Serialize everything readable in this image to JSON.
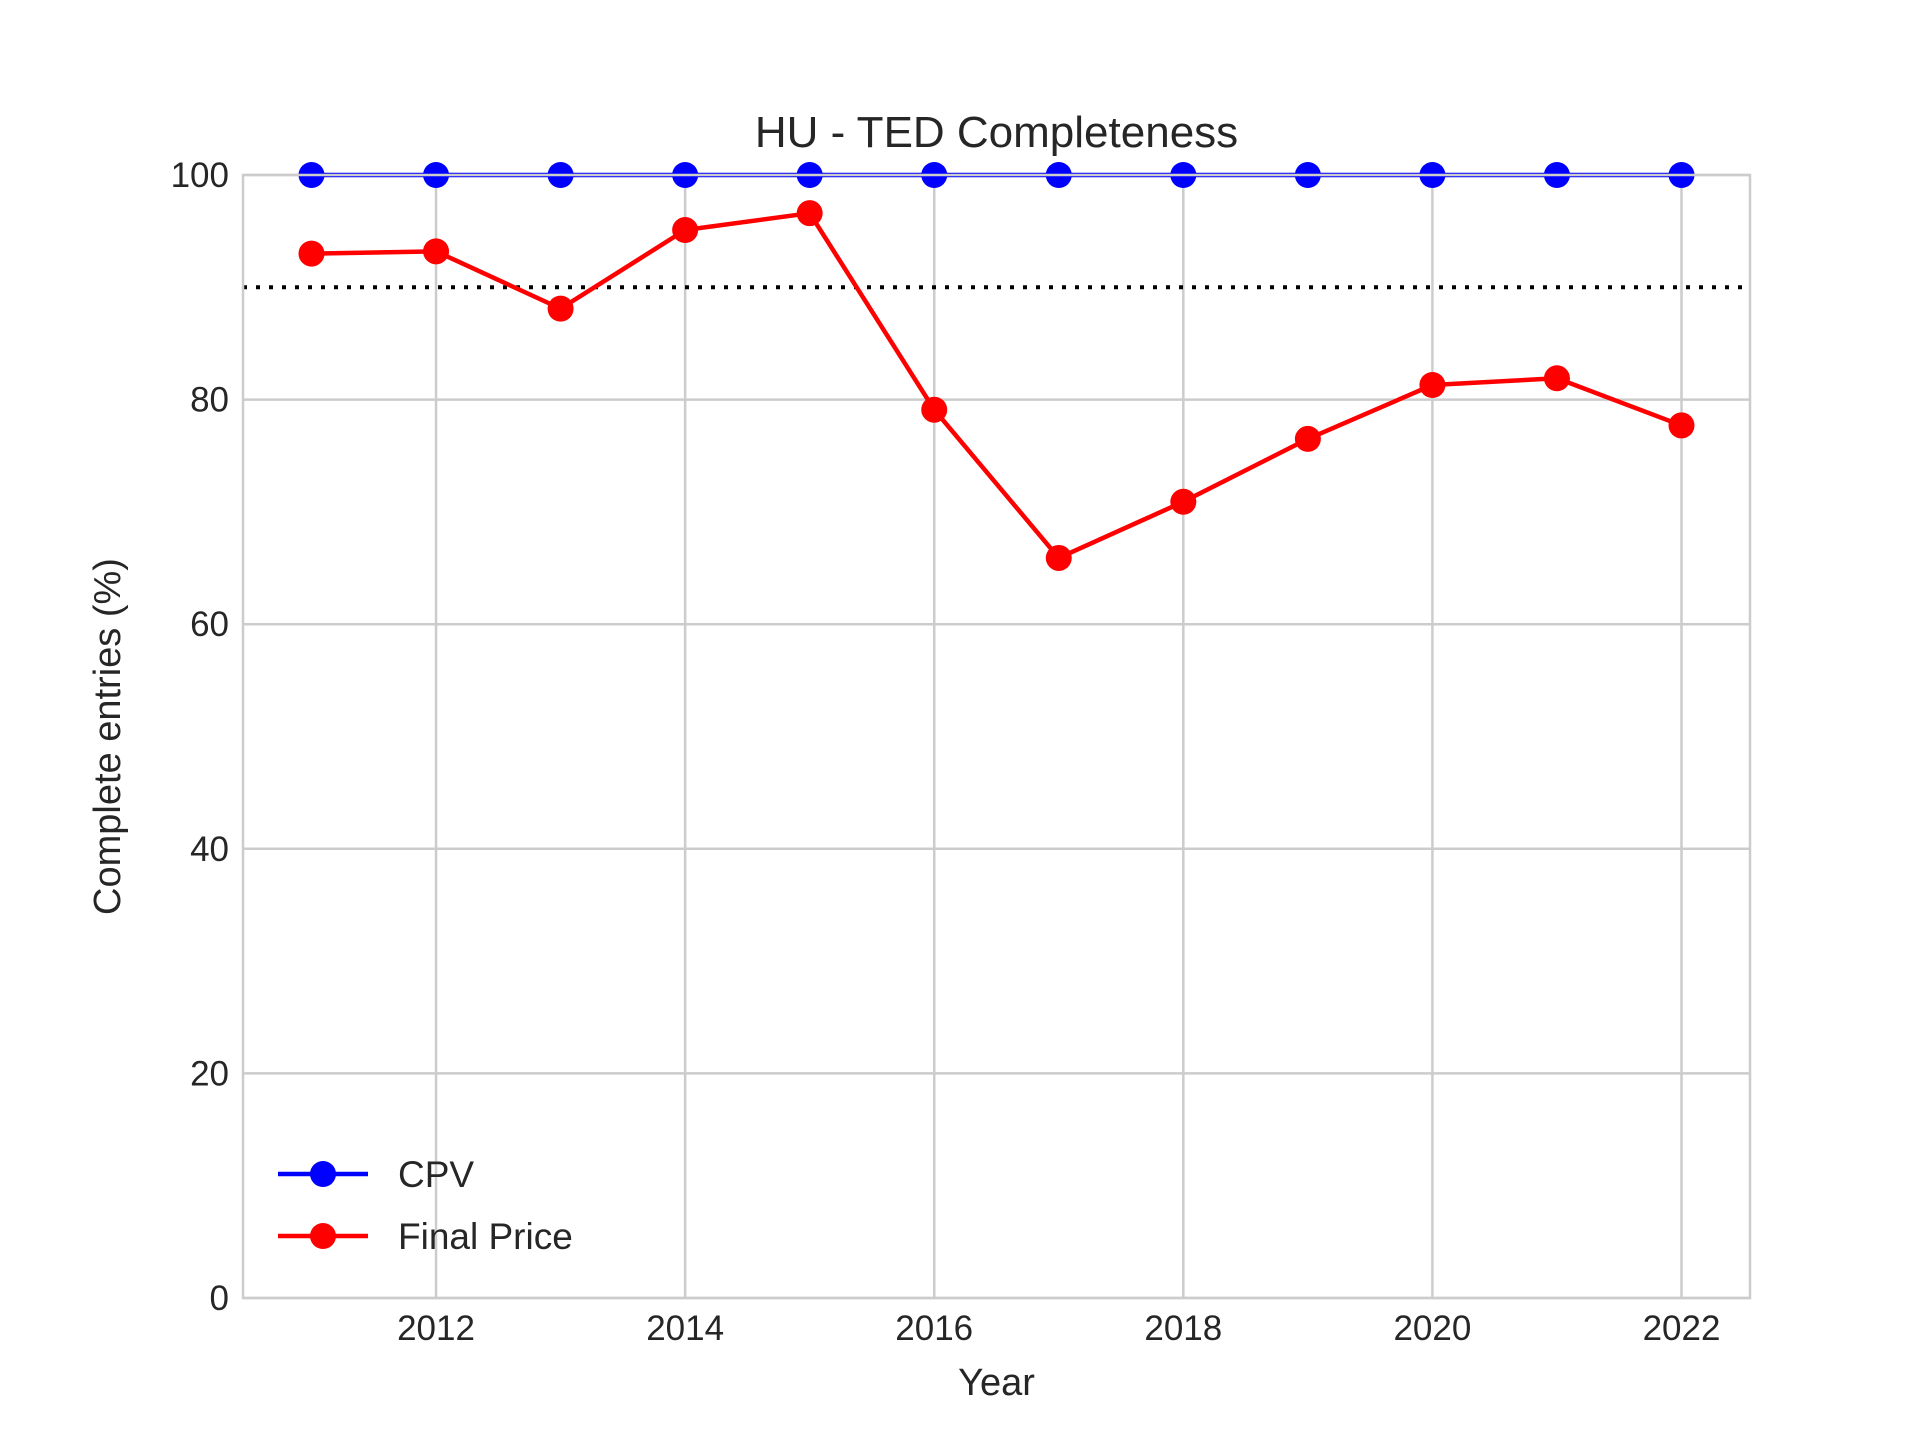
{
  "chart_data": {
    "type": "line",
    "title": "HU - TED Completeness",
    "xlabel": "Year",
    "ylabel": "Complete entries (%)",
    "x": [
      2011,
      2012,
      2013,
      2014,
      2015,
      2016,
      2017,
      2018,
      2019,
      2020,
      2021,
      2022
    ],
    "xlim": [
      2010.45,
      2022.55
    ],
    "ylim": [
      0,
      100
    ],
    "x_ticks": [
      2012,
      2014,
      2016,
      2018,
      2020,
      2022
    ],
    "y_ticks": [
      0,
      20,
      40,
      60,
      80,
      100
    ],
    "grid": true,
    "legend_position": "lower-left",
    "reference_line": {
      "y": 90,
      "style": "dotted",
      "color": "#000000"
    },
    "series": [
      {
        "name": "CPV",
        "color": "#0000ff",
        "values": [
          100,
          100,
          100,
          100,
          100,
          100,
          100,
          100,
          100,
          100,
          100,
          100
        ]
      },
      {
        "name": "Final Price",
        "color": "#ff0000",
        "values": [
          93.0,
          93.2,
          88.1,
          95.1,
          96.6,
          79.1,
          65.9,
          70.9,
          76.5,
          81.3,
          81.9,
          77.7
        ]
      }
    ]
  }
}
